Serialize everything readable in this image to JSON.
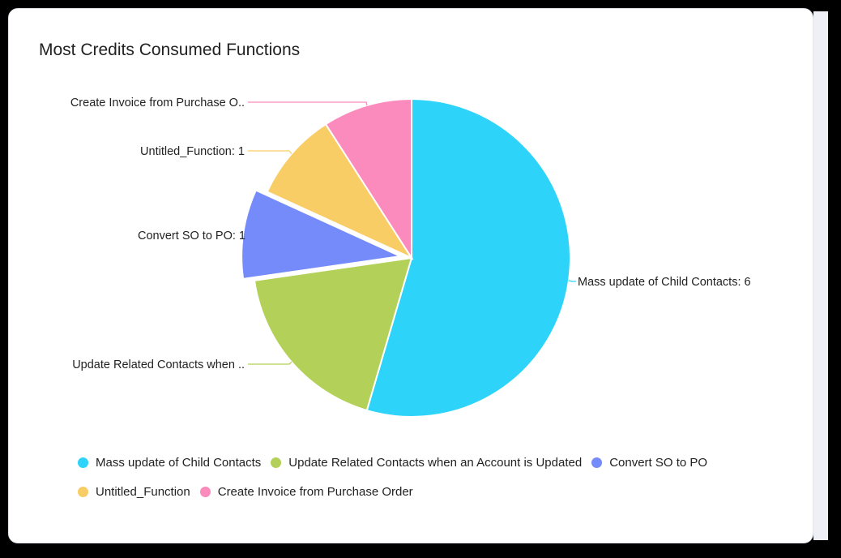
{
  "card": {
    "title": "Most Credits Consumed Functions"
  },
  "chart_data": {
    "type": "pie",
    "title": "Most Credits Consumed Functions",
    "slices": [
      {
        "name": "Mass update of Child Contacts",
        "value": 6,
        "color": "#2dd3f9",
        "label": "Mass update of Child Contacts: 6",
        "exploded": false
      },
      {
        "name": "Update Related Contacts when an Account is Updated",
        "value": 2,
        "color": "#b3d158",
        "label": "Update Related Contacts when ..",
        "exploded": false
      },
      {
        "name": "Convert SO to PO",
        "value": 1,
        "color": "#758bfa",
        "label": "Convert SO to PO: 1",
        "exploded": true
      },
      {
        "name": "Untitled_Function",
        "value": 1,
        "color": "#f9cd65",
        "label": "Untitled_Function: 1",
        "exploded": false
      },
      {
        "name": "Create Invoice from Purchase Order",
        "value": 1,
        "color": "#fb8bbd",
        "label": "Create Invoice from Purchase O..",
        "exploded": false
      }
    ],
    "legend_position": "bottom"
  }
}
